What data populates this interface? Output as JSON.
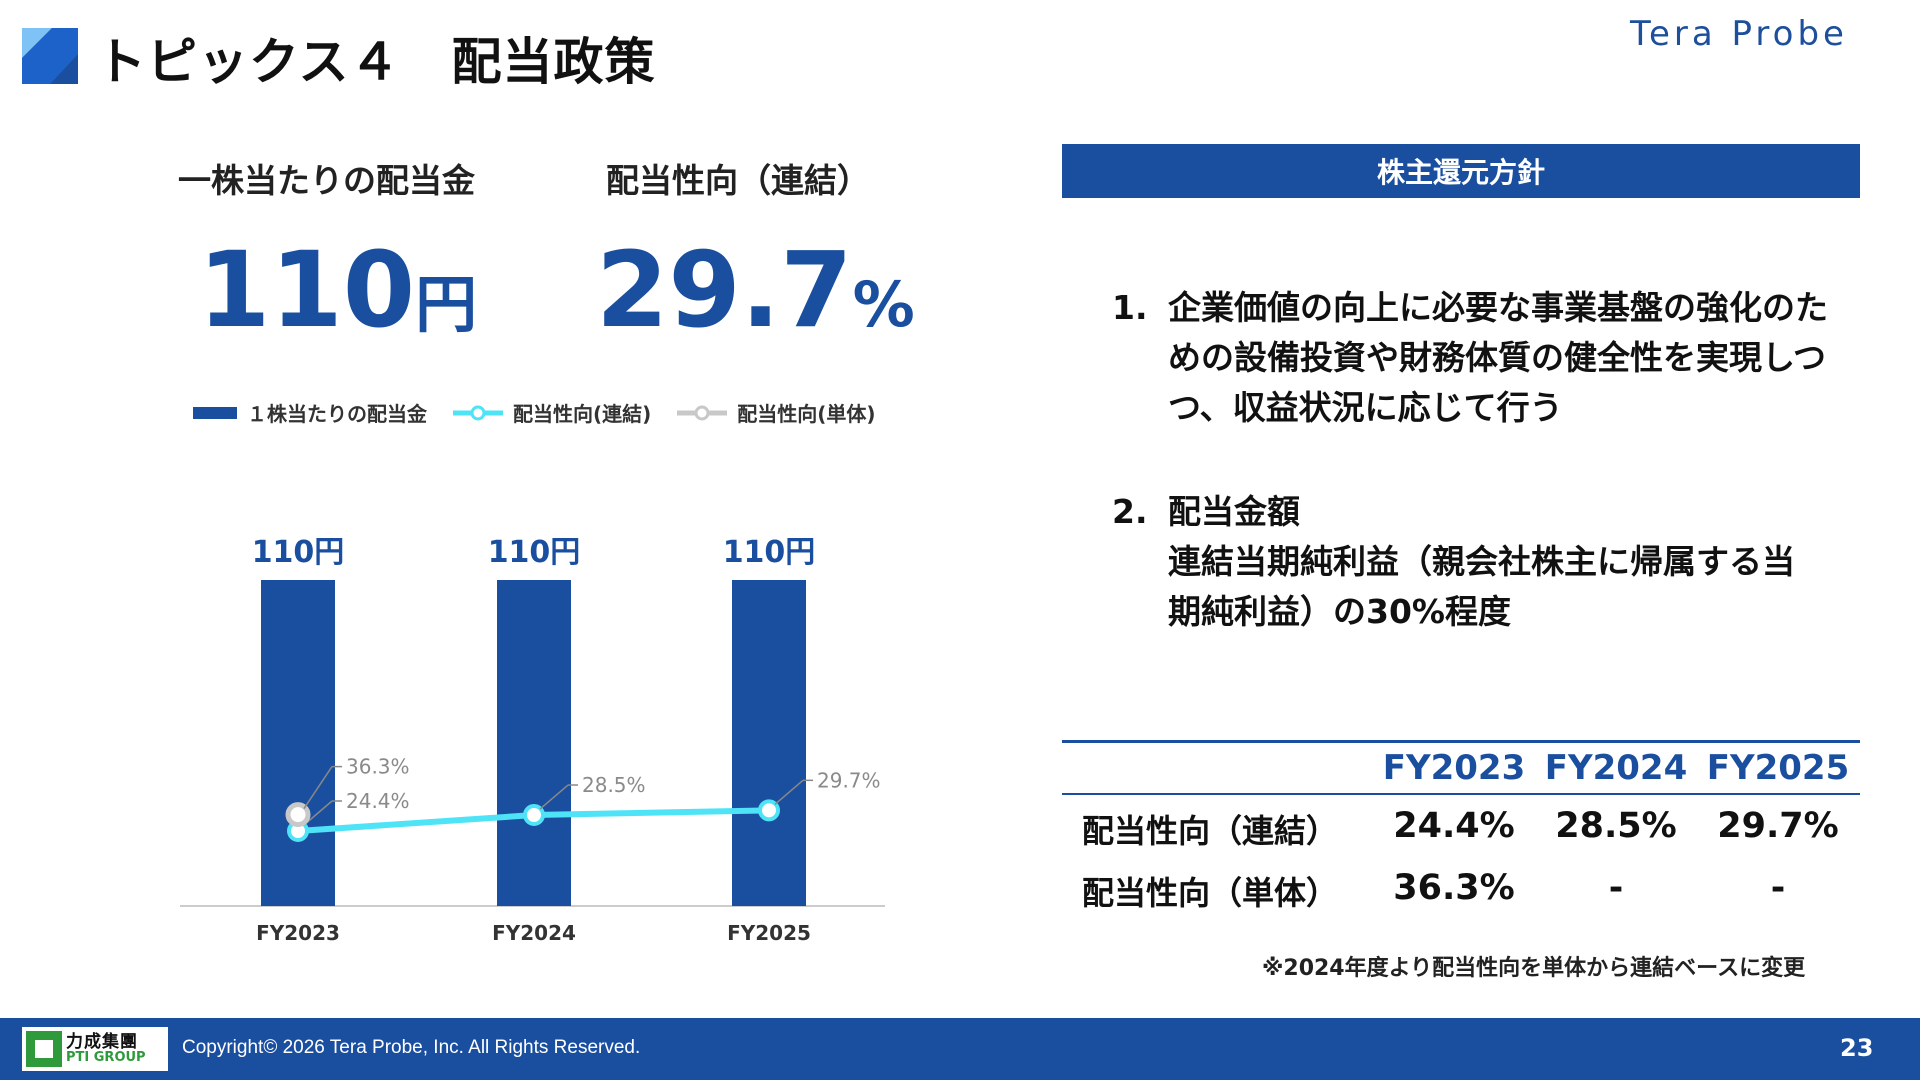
{
  "header": {
    "title": "トピックス４　配当政策",
    "brand": "Tera Probe"
  },
  "kpis": {
    "dps_label": "一株当たりの配当金",
    "dps_value": "110",
    "dps_unit": "円",
    "payout_label": "配当性向（連結）",
    "payout_value": "29.7",
    "payout_unit": "%"
  },
  "legend": {
    "bar": "１株当たりの配当金",
    "consolidated": "配当性向(連結)",
    "standalone": "配当性向(単体)"
  },
  "chart_data": {
    "type": "bar",
    "categories": [
      "FY2023",
      "FY2024",
      "FY2025"
    ],
    "bar_labels": [
      "110円",
      "110円",
      "110円"
    ],
    "point_labels_consolidated": [
      "24.4%",
      "28.5%",
      "29.7%"
    ],
    "point_labels_standalone": [
      "36.3%"
    ],
    "series": [
      {
        "name": "１株当たりの配当金",
        "type": "bar",
        "unit": "円",
        "values": [
          110,
          110,
          110
        ]
      },
      {
        "name": "配当性向(連結)",
        "type": "line",
        "unit": "%",
        "values": [
          24.4,
          28.5,
          29.7
        ]
      },
      {
        "name": "配当性向(単体)",
        "type": "line",
        "unit": "%",
        "values": [
          36.3,
          null,
          null
        ]
      }
    ],
    "legend_position": "top",
    "colors": {
      "bar": "#1a4fa0",
      "consolidated": "#4ee3f7",
      "standalone": "#c8c8c8"
    }
  },
  "policy": {
    "header": "株主還元方針",
    "item1_num": "1.",
    "item1_text": "企業価値の向上に必要な事業基盤の強化のための設備投資や財務体質の健全性を実現しつつ、収益状況に応じて行う",
    "item2_num": "2.",
    "item2_title": "配当金額",
    "item2_text": "連結当期純利益（親会社株主に帰属する当期純利益）の30%程度"
  },
  "table": {
    "headers": [
      "FY2023",
      "FY2024",
      "FY2025"
    ],
    "rows": [
      {
        "label": "配当性向（連結）",
        "cells": [
          "24.4%",
          "28.5%",
          "29.7%"
        ]
      },
      {
        "label": "配当性向（単体）",
        "cells": [
          "36.3%",
          "-",
          "-"
        ]
      }
    ],
    "note": "※2024年度より配当性向を単体から連結ベースに変更"
  },
  "footer": {
    "group_zh": "力成集團",
    "group_en": "PTI GROUP",
    "copyright": "Copyright©  2026 Tera Probe, Inc. All Rights Reserved.",
    "page_number": "23"
  }
}
